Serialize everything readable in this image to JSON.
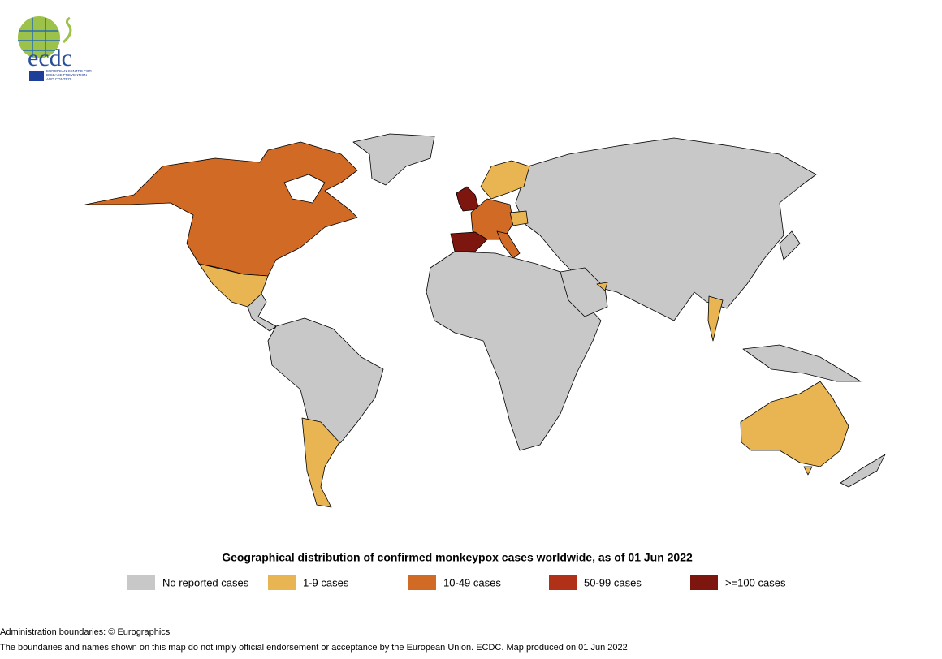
{
  "logo": {
    "name": "ecdc",
    "subtitle": [
      "EUROPEAN CENTRE FOR",
      "DISEASE PREVENTION",
      "AND CONTROL"
    ]
  },
  "title": "Geographical distribution of confirmed monkeypox cases worldwide, as of 01 Jun 2022",
  "legend": [
    {
      "label": "No reported cases",
      "color": "#c8c8c8"
    },
    {
      "label": "1-9 cases",
      "color": "#e8b552"
    },
    {
      "label": "10-49 cases",
      "color": "#d06a24"
    },
    {
      "label": "50-99 cases",
      "color": "#b03018"
    },
    {
      "label": ">=100 cases",
      "color": "#7e1610"
    }
  ],
  "footer": [
    "Administration boundaries: © Eurographics",
    "The boundaries and names shown on this map do not imply official endorsement or acceptance by the European Union. ECDC. Map produced on 01 Jun 2022"
  ]
}
